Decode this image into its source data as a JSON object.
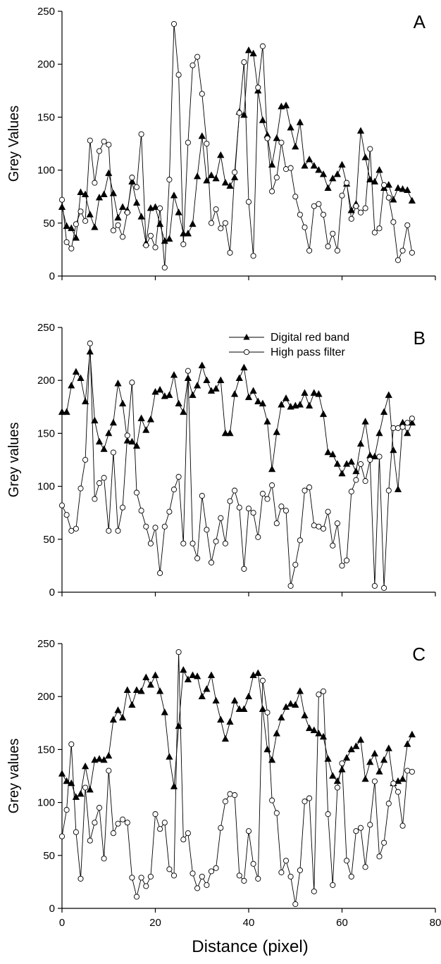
{
  "chart_data": [
    {
      "type": "line",
      "panel_label": "A",
      "ylabel": "Grey Values",
      "xlabel": "",
      "xlim": [
        0,
        80
      ],
      "ylim": [
        0,
        250
      ],
      "xticks": [
        0,
        20,
        40,
        60,
        80
      ],
      "yticks": [
        0,
        50,
        100,
        150,
        200,
        250
      ],
      "x_tick_labels_shown": false,
      "legend": null,
      "series": [
        {
          "name": "Digital red band",
          "marker": "filled-triangle",
          "x": [
            0,
            1,
            2,
            3,
            4,
            5,
            6,
            7,
            8,
            9,
            10,
            11,
            12,
            13,
            14,
            15,
            16,
            17,
            18,
            19,
            20,
            21,
            22,
            23,
            24,
            25,
            26,
            27,
            28,
            29,
            30,
            31,
            32,
            33,
            34,
            35,
            36,
            37,
            38,
            39,
            40,
            41,
            42,
            43,
            44,
            45,
            46,
            47,
            48,
            49,
            50,
            51,
            52,
            53,
            54,
            55,
            56,
            57,
            58,
            59,
            60,
            61,
            62,
            63,
            64,
            65,
            66,
            67,
            68,
            69,
            70,
            71,
            72,
            73,
            74,
            75
          ],
          "y": [
            65,
            47,
            45,
            36,
            79,
            77,
            58,
            46,
            74,
            77,
            97,
            78,
            55,
            65,
            62,
            89,
            69,
            56,
            31,
            64,
            65,
            49,
            33,
            35,
            76,
            60,
            40,
            40,
            49,
            94,
            132,
            90,
            95,
            92,
            114,
            88,
            85,
            93,
            155,
            152,
            213,
            210,
            175,
            147,
            133,
            105,
            130,
            160,
            161,
            140,
            122,
            145,
            104,
            110,
            104,
            100,
            96,
            83,
            92,
            96,
            105,
            87,
            62,
            68,
            137,
            112,
            91,
            89,
            100,
            83,
            86,
            72,
            83,
            82,
            81,
            71
          ]
        },
        {
          "name": "High pass filter",
          "marker": "open-circle",
          "x": [
            0,
            1,
            2,
            3,
            4,
            5,
            6,
            7,
            8,
            9,
            10,
            11,
            12,
            13,
            14,
            15,
            16,
            17,
            18,
            19,
            20,
            21,
            22,
            23,
            24,
            25,
            26,
            27,
            28,
            29,
            30,
            31,
            32,
            33,
            34,
            35,
            36,
            37,
            38,
            39,
            40,
            41,
            42,
            43,
            44,
            45,
            46,
            47,
            48,
            49,
            50,
            51,
            52,
            53,
            54,
            55,
            56,
            57,
            58,
            59,
            60,
            61,
            62,
            63,
            64,
            65,
            66,
            67,
            68,
            69,
            70,
            71,
            72,
            73,
            74,
            75
          ],
          "y": [
            72,
            32,
            26,
            49,
            61,
            52,
            128,
            88,
            118,
            127,
            124,
            43,
            48,
            37,
            60,
            93,
            84,
            134,
            29,
            38,
            27,
            64,
            8,
            91,
            238,
            190,
            30,
            126,
            199,
            207,
            172,
            125,
            50,
            63,
            45,
            50,
            22,
            98,
            154,
            202,
            70,
            19,
            178,
            217,
            130,
            80,
            93,
            126,
            101,
            102,
            75,
            58,
            46,
            24,
            66,
            68,
            58,
            28,
            40,
            24,
            76,
            88,
            54,
            66,
            60,
            64,
            120,
            41,
            45,
            86,
            74,
            51,
            15,
            24,
            48,
            22
          ]
        }
      ]
    },
    {
      "type": "line",
      "panel_label": "B",
      "ylabel": "Grey values",
      "xlabel": "",
      "xlim": [
        0,
        80
      ],
      "ylim": [
        0,
        250
      ],
      "xticks": [
        0,
        20,
        40,
        60,
        80
      ],
      "yticks": [
        0,
        50,
        100,
        150,
        200,
        250
      ],
      "x_tick_labels_shown": false,
      "legend": {
        "placement": "top-center",
        "entries": [
          {
            "label": "Digital red band",
            "marker": "filled-triangle"
          },
          {
            "label": "High pass filter",
            "marker": "open-circle"
          }
        ]
      },
      "series": [
        {
          "name": "Digital red band",
          "marker": "filled-triangle",
          "x": [
            0,
            1,
            2,
            3,
            4,
            5,
            6,
            7,
            8,
            9,
            10,
            11,
            12,
            13,
            14,
            15,
            16,
            17,
            18,
            19,
            20,
            21,
            22,
            23,
            24,
            25,
            26,
            27,
            28,
            29,
            30,
            31,
            32,
            33,
            34,
            35,
            36,
            37,
            38,
            39,
            40,
            41,
            42,
            43,
            44,
            45,
            46,
            47,
            48,
            49,
            50,
            51,
            52,
            53,
            54,
            55,
            56,
            57,
            58,
            59,
            60,
            61,
            62,
            63,
            64,
            65,
            66,
            67,
            68,
            69,
            70,
            71,
            72,
            73,
            74,
            75
          ],
          "y": [
            170,
            170,
            195,
            208,
            202,
            180,
            227,
            162,
            142,
            135,
            150,
            160,
            197,
            178,
            143,
            142,
            138,
            164,
            153,
            163,
            189,
            191,
            185,
            186,
            205,
            178,
            170,
            202,
            186,
            195,
            214,
            200,
            190,
            192,
            200,
            150,
            150,
            187,
            202,
            212,
            184,
            190,
            180,
            178,
            161,
            116,
            151,
            177,
            183,
            175,
            176,
            177,
            188,
            176,
            188,
            187,
            168,
            132,
            130,
            121,
            112,
            121,
            123,
            114,
            140,
            161,
            129,
            128,
            150,
            170,
            186,
            134,
            97,
            160,
            150,
            160
          ]
        },
        {
          "name": "High pass filter",
          "marker": "open-circle",
          "x": [
            0,
            1,
            2,
            3,
            4,
            5,
            6,
            7,
            8,
            9,
            10,
            11,
            12,
            13,
            14,
            15,
            16,
            17,
            18,
            19,
            20,
            21,
            22,
            23,
            24,
            25,
            26,
            27,
            28,
            29,
            30,
            31,
            32,
            33,
            34,
            35,
            36,
            37,
            38,
            39,
            40,
            41,
            42,
            43,
            44,
            45,
            46,
            47,
            48,
            49,
            50,
            51,
            52,
            53,
            54,
            55,
            56,
            57,
            58,
            59,
            60,
            61,
            62,
            63,
            64,
            65,
            66,
            67,
            68,
            69,
            70,
            71,
            72,
            73,
            74,
            75
          ],
          "y": [
            82,
            73,
            58,
            60,
            98,
            125,
            235,
            88,
            103,
            108,
            58,
            132,
            58,
            80,
            148,
            198,
            94,
            77,
            62,
            46,
            61,
            18,
            62,
            76,
            97,
            109,
            46,
            209,
            46,
            32,
            91,
            59,
            28,
            48,
            70,
            46,
            86,
            96,
            80,
            22,
            79,
            75,
            52,
            93,
            88,
            101,
            65,
            81,
            77,
            6,
            26,
            49,
            96,
            99,
            63,
            62,
            60,
            76,
            44,
            65,
            25,
            30,
            95,
            106,
            121,
            105,
            125,
            6,
            128,
            4,
            96,
            155,
            155,
            156,
            160,
            164
          ]
        }
      ]
    },
    {
      "type": "line",
      "panel_label": "C",
      "ylabel": "Grey values",
      "xlabel": "Distance (pixel)",
      "xlim": [
        0,
        80
      ],
      "ylim": [
        0,
        250
      ],
      "xticks": [
        0,
        20,
        40,
        60,
        80
      ],
      "yticks": [
        0,
        50,
        100,
        150,
        200,
        250
      ],
      "x_tick_labels_shown": true,
      "legend": null,
      "series": [
        {
          "name": "Digital red band",
          "marker": "filled-triangle",
          "x": [
            0,
            1,
            2,
            3,
            4,
            5,
            6,
            7,
            8,
            9,
            10,
            11,
            12,
            13,
            14,
            15,
            16,
            17,
            18,
            19,
            20,
            21,
            22,
            23,
            24,
            25,
            26,
            27,
            28,
            29,
            30,
            31,
            32,
            33,
            34,
            35,
            36,
            37,
            38,
            39,
            40,
            41,
            42,
            43,
            44,
            45,
            46,
            47,
            48,
            49,
            50,
            51,
            52,
            53,
            54,
            55,
            56,
            57,
            58,
            59,
            60,
            61,
            62,
            63,
            64,
            65,
            66,
            67,
            68,
            69,
            70,
            71,
            72,
            73,
            74,
            75
          ],
          "y": [
            127,
            120,
            118,
            105,
            108,
            134,
            112,
            140,
            141,
            140,
            144,
            178,
            187,
            180,
            206,
            192,
            206,
            205,
            218,
            211,
            220,
            205,
            185,
            143,
            115,
            172,
            225,
            216,
            220,
            219,
            200,
            207,
            220,
            196,
            178,
            160,
            176,
            196,
            188,
            188,
            200,
            220,
            222,
            188,
            150,
            140,
            165,
            180,
            190,
            193,
            192,
            205,
            182,
            170,
            168,
            165,
            162,
            141,
            125,
            120,
            131,
            142,
            150,
            153,
            159,
            122,
            138,
            146,
            129,
            140,
            151,
            118,
            120,
            122,
            155,
            164
          ]
        },
        {
          "name": "High pass filter",
          "marker": "open-circle",
          "x": [
            0,
            1,
            2,
            3,
            4,
            5,
            6,
            7,
            8,
            9,
            10,
            11,
            12,
            13,
            14,
            15,
            16,
            17,
            18,
            19,
            20,
            21,
            22,
            23,
            24,
            25,
            26,
            27,
            28,
            29,
            30,
            31,
            32,
            33,
            34,
            35,
            36,
            37,
            38,
            39,
            40,
            41,
            42,
            43,
            44,
            45,
            46,
            47,
            48,
            49,
            50,
            51,
            52,
            53,
            54,
            55,
            56,
            57,
            58,
            59,
            60,
            61,
            62,
            63,
            64,
            65,
            66,
            67,
            68,
            69,
            70,
            71,
            72,
            73,
            74,
            75
          ],
          "y": [
            68,
            93,
            155,
            72,
            28,
            114,
            64,
            81,
            95,
            47,
            130,
            71,
            80,
            84,
            81,
            29,
            11,
            29,
            21,
            30,
            89,
            75,
            81,
            37,
            31,
            242,
            65,
            71,
            33,
            19,
            30,
            22,
            35,
            38,
            76,
            101,
            108,
            107,
            31,
            26,
            73,
            42,
            28,
            215,
            185,
            102,
            90,
            34,
            45,
            30,
            4,
            36,
            101,
            104,
            16,
            202,
            205,
            89,
            22,
            114,
            137,
            45,
            30,
            73,
            76,
            39,
            79,
            120,
            49,
            62,
            99,
            118,
            110,
            78,
            130,
            129
          ]
        }
      ]
    }
  ]
}
